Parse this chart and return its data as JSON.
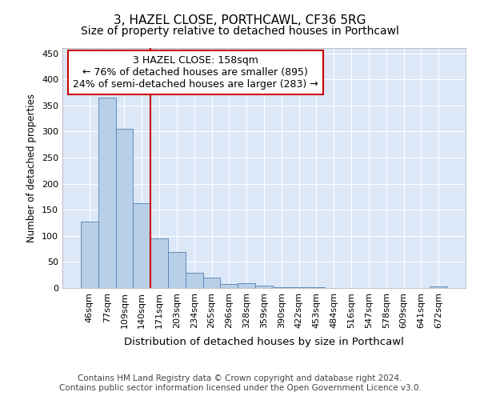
{
  "title1": "3, HAZEL CLOSE, PORTHCAWL, CF36 5RG",
  "title2": "Size of property relative to detached houses in Porthcawl",
  "xlabel": "Distribution of detached houses by size in Porthcawl",
  "ylabel": "Number of detached properties",
  "categories": [
    "46sqm",
    "77sqm",
    "109sqm",
    "140sqm",
    "171sqm",
    "203sqm",
    "234sqm",
    "265sqm",
    "296sqm",
    "328sqm",
    "359sqm",
    "390sqm",
    "422sqm",
    "453sqm",
    "484sqm",
    "516sqm",
    "547sqm",
    "578sqm",
    "609sqm",
    "641sqm",
    "672sqm"
  ],
  "values": [
    128,
    365,
    305,
    163,
    95,
    69,
    29,
    20,
    8,
    9,
    5,
    2,
    1,
    1,
    0,
    0,
    0,
    0,
    0,
    0,
    3
  ],
  "bar_color": "#b8cfe8",
  "bar_edge_color": "#5580b0",
  "bg_color": "#dce8f8",
  "grid_color": "#ffffff",
  "annotation_text": "3 HAZEL CLOSE: 158sqm\n← 76% of detached houses are smaller (895)\n24% of semi-detached houses are larger (283) →",
  "annotation_box_color": "#ffffff",
  "annotation_box_edge": "#cc0000",
  "vline_x": 3.5,
  "vline_color": "#cc0000",
  "ylim": [
    0,
    460
  ],
  "yticks": [
    0,
    50,
    100,
    150,
    200,
    250,
    300,
    350,
    400,
    450
  ],
  "footer": "Contains HM Land Registry data © Crown copyright and database right 2024.\nContains public sector information licensed under the Open Government Licence v3.0.",
  "title1_fontsize": 11,
  "title2_fontsize": 10,
  "xlabel_fontsize": 9.5,
  "ylabel_fontsize": 8.5,
  "tick_fontsize": 8,
  "annotation_fontsize": 9,
  "footer_fontsize": 7.5
}
